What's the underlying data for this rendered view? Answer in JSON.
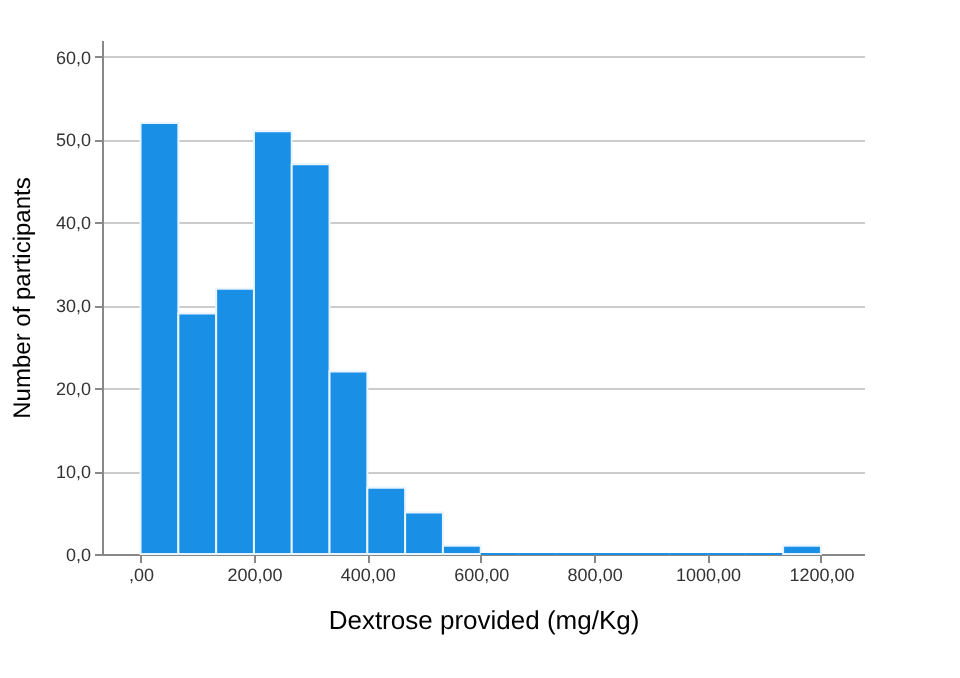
{
  "chart_data": {
    "type": "histogram",
    "xlabel": "Dextrose provided (mg/Kg)",
    "ylabel": "Number of participants",
    "bins": [
      0,
      66.67,
      133.33,
      200,
      266.67,
      333.33,
      400,
      466.67,
      533.33,
      600,
      666.67,
      733.33,
      800,
      866.67,
      933.33,
      1000,
      1066.67,
      1133.33,
      1200
    ],
    "values": [
      52,
      29,
      32,
      51,
      47,
      22,
      8,
      5,
      1,
      0,
      0,
      0,
      0,
      0,
      0,
      0,
      0,
      1
    ],
    "color": "#1a8fe6",
    "xlim": [
      -68,
      1276
    ],
    "ylim": [
      0,
      62
    ],
    "xticks": [
      {
        "value": 0,
        "label": ",00"
      },
      {
        "value": 200,
        "label": "200,00"
      },
      {
        "value": 400,
        "label": "400,00"
      },
      {
        "value": 600,
        "label": "600,00"
      },
      {
        "value": 800,
        "label": "800,00"
      },
      {
        "value": 1000,
        "label": "1000,00"
      },
      {
        "value": 1200,
        "label": "1200,00"
      }
    ],
    "yticks": [
      {
        "value": 0,
        "label": "0,0"
      },
      {
        "value": 10,
        "label": "10,0"
      },
      {
        "value": 20,
        "label": "20,0"
      },
      {
        "value": 30,
        "label": "30,0"
      },
      {
        "value": 40,
        "label": "40,0"
      },
      {
        "value": 50,
        "label": "50,0"
      },
      {
        "value": 60,
        "label": "60,0"
      }
    ],
    "grid": "y"
  }
}
